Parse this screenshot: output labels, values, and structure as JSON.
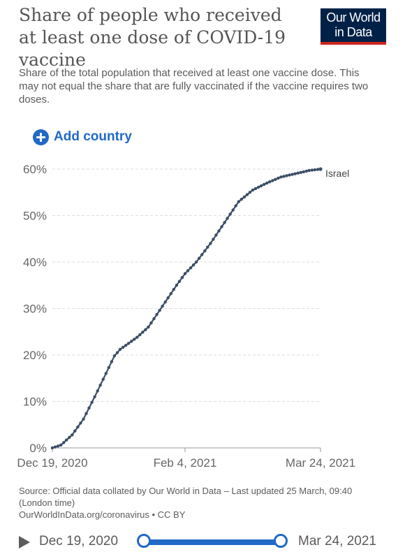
{
  "header": {
    "title": "Share of people who received at least one dose of COVID-19 vaccine",
    "subtitle": "Share of the total population that received at least one vaccine dose. This may not equal the share that are fully vaccinated if the vaccine requires two doses.",
    "logo_line1": "Our World",
    "logo_line2": "in Data"
  },
  "controls": {
    "add_country_label": "Add country",
    "icon": "plus-circle-icon"
  },
  "chart_data": {
    "type": "line",
    "x": [
      "2020-12-19",
      "2020-12-22",
      "2020-12-26",
      "2020-12-30",
      "2021-01-03",
      "2021-01-05",
      "2021-01-08",
      "2021-01-10",
      "2021-01-12",
      "2021-01-15",
      "2021-01-18",
      "2021-01-22",
      "2021-01-27",
      "2021-02-01",
      "2021-02-04",
      "2021-02-08",
      "2021-02-13",
      "2021-02-18",
      "2021-02-23",
      "2021-02-28",
      "2021-03-05",
      "2021-03-10",
      "2021-03-15",
      "2021-03-20",
      "2021-03-24"
    ],
    "series": [
      {
        "name": "Israel",
        "color": "#3c4e66",
        "values": [
          0.0,
          0.6,
          2.8,
          6.2,
          11.0,
          13.5,
          17.3,
          19.8,
          21.2,
          22.5,
          23.8,
          26.0,
          30.5,
          35.0,
          37.5,
          40.0,
          44.0,
          48.5,
          53.0,
          55.5,
          57.0,
          58.3,
          59.0,
          59.7,
          60.0
        ]
      }
    ],
    "y_ticks": [
      "0%",
      "10%",
      "20%",
      "30%",
      "40%",
      "50%",
      "60%"
    ],
    "x_tick_labels": [
      "Dec 19, 2020",
      "Feb 4, 2021",
      "Mar 24, 2021"
    ],
    "ylim": [
      0,
      60
    ],
    "xlim": [
      "2020-12-19",
      "2021-03-24"
    ],
    "grid": true,
    "legend": "end-of-line label",
    "axis_color": "#999999",
    "grid_color": "#dddddd"
  },
  "footer": {
    "source": "Source: Official data collated by Our World in Data – Last updated 25 March, 09:40 (London time)",
    "url_line": "OurWorldInData.org/coronavirus • CC BY"
  },
  "timeline": {
    "start_label": "Dec 19, 2020",
    "end_label": "Mar 24, 2021",
    "accent": "#2169c8"
  }
}
